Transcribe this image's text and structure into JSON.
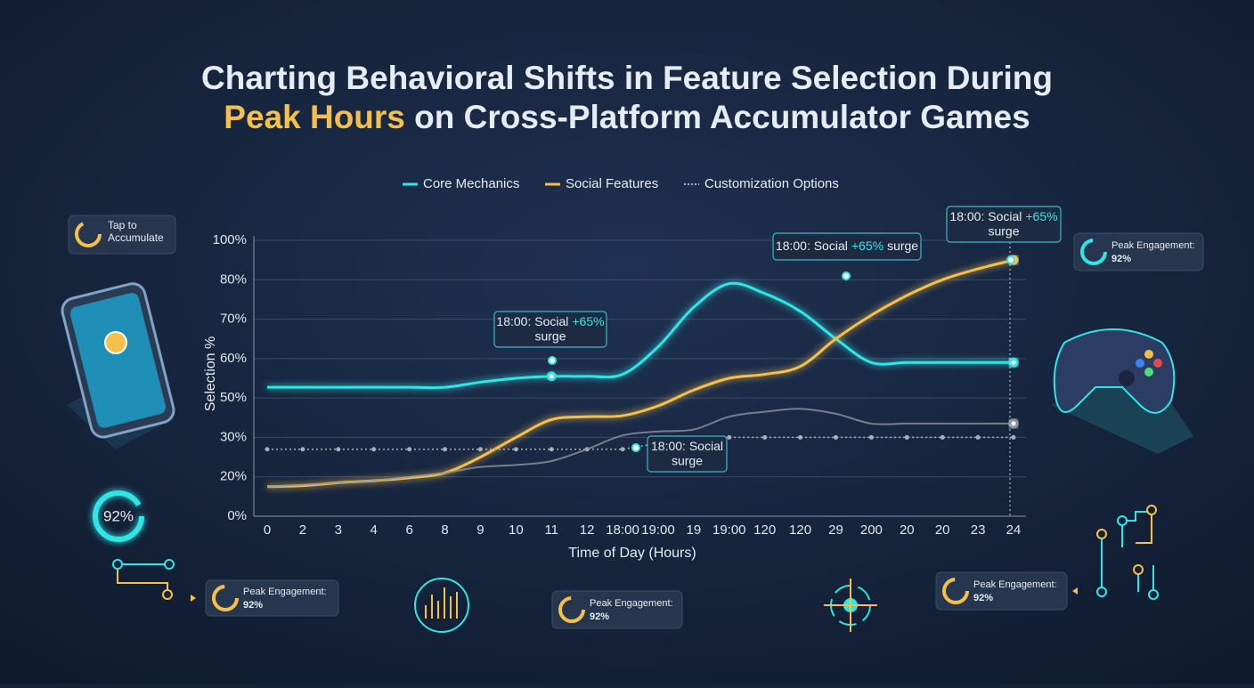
{
  "chart_data": {
    "type": "line",
    "title": {
      "line1": "Charting Behavioral Shifts in Feature Selection During",
      "highlight": "Peak Hours",
      "line2": "on Cross-Platform Accumulator Games"
    },
    "x_label": "Time of Day (Hours)",
    "y_label": "Selection %",
    "categories": [
      "0",
      "2",
      "3",
      "4",
      "6",
      "8",
      "9",
      "10",
      "11",
      "12",
      "18:00",
      "19:00",
      "19",
      "19:00",
      "120",
      "120",
      "29",
      "200",
      "20",
      "20",
      "23",
      "24"
    ],
    "ylim": [
      0,
      100
    ],
    "yticks": [
      {
        "value": 0,
        "label": "0%"
      },
      {
        "value": 20,
        "label": "20%"
      },
      {
        "value": 30,
        "label": "30%"
      },
      {
        "value": 50,
        "label": "50%"
      },
      {
        "value": 60,
        "label": "60%"
      },
      {
        "value": 70,
        "label": "70%"
      },
      {
        "value": 80,
        "label": "80%"
      },
      {
        "value": 100,
        "label": "100%"
      }
    ],
    "grid": true,
    "series": [
      {
        "name": "Core Mechanics",
        "color": "#2ee6e6",
        "values": [
          52.7,
          52.7,
          52.7,
          52.7,
          52.7,
          52.7,
          54,
          55,
          55.5,
          55.5,
          56,
          63,
          73,
          79,
          76.5,
          72,
          65,
          59,
          59,
          59,
          59,
          59
        ]
      },
      {
        "name": "Social Features",
        "color": "#f5c04a",
        "values": [
          15,
          15.5,
          17,
          18,
          19.5,
          21,
          25,
          30,
          39,
          40.5,
          41,
          46,
          52,
          55,
          56,
          58,
          65,
          71,
          76,
          80,
          85.5,
          90
        ]
      },
      {
        "name": "Customization Options",
        "color": "#a8b0ba",
        "style": "dotted",
        "values": [
          27,
          27,
          27,
          27,
          27,
          27,
          27,
          27,
          27,
          27,
          27,
          28.5,
          29,
          30,
          30,
          30,
          30,
          30,
          30,
          30,
          30,
          30
        ]
      },
      {
        "color": "#8d949c",
        "values": [
          15,
          16,
          17,
          18,
          20,
          21,
          22.5,
          23,
          24,
          27,
          31,
          33,
          34,
          40.5,
          43,
          44.5,
          42,
          37,
          37,
          37,
          37,
          37
        ]
      }
    ],
    "annotations": [
      {
        "parts": [
          "18:00: Social",
          "+65%",
          "surge"
        ]
      },
      {
        "parts": [
          "18:00: Social",
          "+65%",
          "surge"
        ]
      },
      {
        "parts": [
          "18:00: Social",
          "+65%",
          "surge"
        ]
      },
      {
        "parts": [
          "18:00: Social",
          "surge"
        ]
      }
    ]
  },
  "widgets": {
    "tap": [
      "Tap to",
      "Accumulate"
    ],
    "ring": "92%",
    "peak": [
      {
        "label": "Peak Engagement:",
        "value": "92%"
      },
      {
        "label": "Peak Engagement:",
        "value": "92%"
      },
      {
        "label": "Peak Engagement:",
        "value": "92%"
      },
      {
        "label": "Peak Engagement:",
        "value": "92%"
      }
    ]
  }
}
